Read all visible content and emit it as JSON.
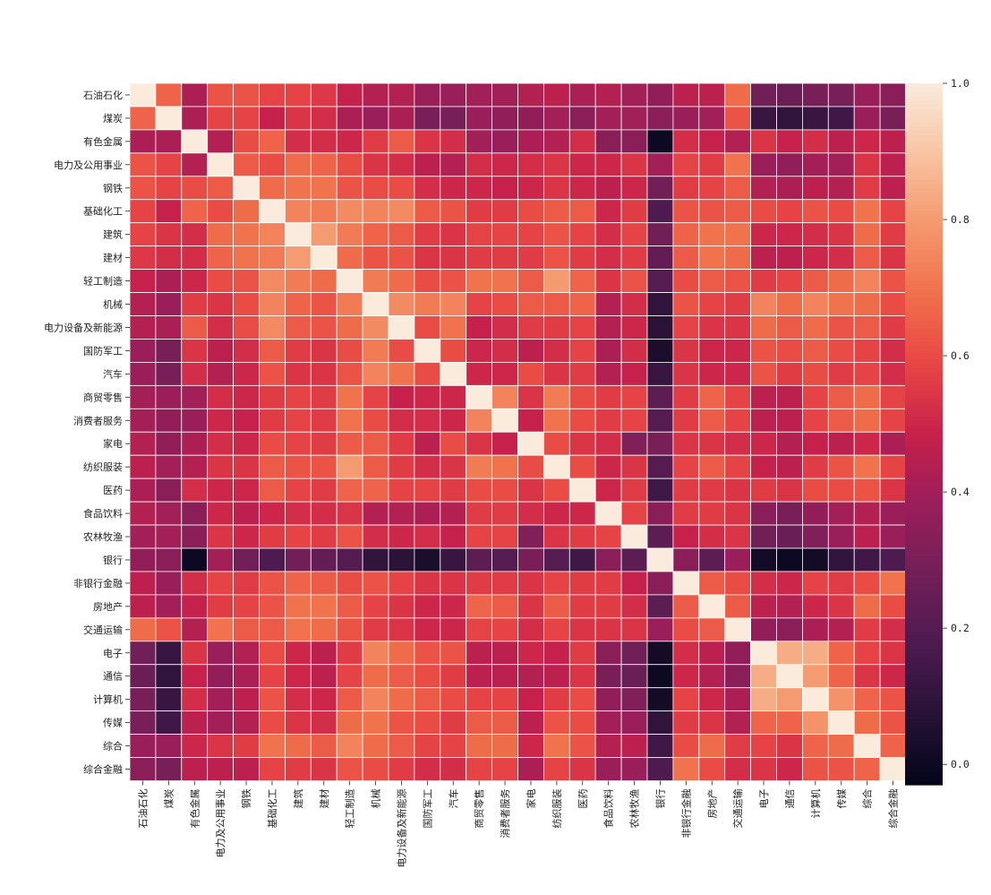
{
  "chart_data": {
    "type": "heatmap",
    "title": "",
    "xlabel": "",
    "ylabel": "",
    "labels": [
      "石油石化",
      "煤炭",
      "有色金属",
      "电力及公用事业",
      "钢铁",
      "基础化工",
      "建筑",
      "建材",
      "轻工制造",
      "机械",
      "电力设备及新能源",
      "国防军工",
      "汽车",
      "商贸零售",
      "消费者服务",
      "家电",
      "纺织服装",
      "医药",
      "食品饮料",
      "农林牧渔",
      "银行",
      "非银行金融",
      "房地产",
      "交通运输",
      "电子",
      "通信",
      "计算机",
      "传媒",
      "综合",
      "综合金融"
    ],
    "colorbar": {
      "min": -0.03,
      "max": 1.0,
      "ticks": [
        "0.0",
        "0.2",
        "0.4",
        "0.6",
        "0.8",
        "1.0"
      ],
      "tick_values": [
        0.0,
        0.2,
        0.4,
        0.6,
        0.8,
        1.0
      ]
    },
    "matrix": [
      [
        1.0,
        0.66,
        0.42,
        0.62,
        0.62,
        0.58,
        0.58,
        0.55,
        0.48,
        0.44,
        0.44,
        0.38,
        0.38,
        0.4,
        0.4,
        0.44,
        0.46,
        0.42,
        0.44,
        0.4,
        0.36,
        0.46,
        0.46,
        0.68,
        0.28,
        0.26,
        0.3,
        0.3,
        0.38,
        0.34
      ],
      [
        0.66,
        1.0,
        0.42,
        0.58,
        0.58,
        0.48,
        0.54,
        0.52,
        0.42,
        0.38,
        0.42,
        0.3,
        0.3,
        0.38,
        0.36,
        0.36,
        0.4,
        0.34,
        0.4,
        0.4,
        0.34,
        0.38,
        0.4,
        0.62,
        0.12,
        0.1,
        0.12,
        0.14,
        0.38,
        0.3
      ],
      [
        0.42,
        0.42,
        1.0,
        0.44,
        0.6,
        0.66,
        0.52,
        0.52,
        0.5,
        0.56,
        0.64,
        0.54,
        0.52,
        0.4,
        0.38,
        0.42,
        0.44,
        0.52,
        0.34,
        0.34,
        0.0,
        0.52,
        0.48,
        0.44,
        0.54,
        0.48,
        0.52,
        0.46,
        0.5,
        0.46
      ],
      [
        0.62,
        0.58,
        0.44,
        1.0,
        0.64,
        0.6,
        0.68,
        0.66,
        0.6,
        0.54,
        0.52,
        0.46,
        0.44,
        0.52,
        0.5,
        0.52,
        0.54,
        0.5,
        0.5,
        0.54,
        0.4,
        0.58,
        0.56,
        0.7,
        0.38,
        0.36,
        0.4,
        0.4,
        0.54,
        0.46
      ],
      [
        0.62,
        0.58,
        0.6,
        0.64,
        1.0,
        0.68,
        0.7,
        0.7,
        0.62,
        0.6,
        0.6,
        0.52,
        0.5,
        0.5,
        0.48,
        0.5,
        0.54,
        0.5,
        0.46,
        0.5,
        0.28,
        0.56,
        0.58,
        0.64,
        0.44,
        0.42,
        0.46,
        0.44,
        0.56,
        0.46
      ],
      [
        0.58,
        0.48,
        0.66,
        0.6,
        0.68,
        1.0,
        0.74,
        0.72,
        0.76,
        0.74,
        0.76,
        0.64,
        0.62,
        0.56,
        0.56,
        0.6,
        0.64,
        0.64,
        0.5,
        0.56,
        0.18,
        0.62,
        0.62,
        0.64,
        0.6,
        0.58,
        0.62,
        0.6,
        0.7,
        0.58
      ],
      [
        0.58,
        0.54,
        0.52,
        0.68,
        0.7,
        0.74,
        1.0,
        0.8,
        0.72,
        0.66,
        0.64,
        0.56,
        0.54,
        0.58,
        0.58,
        0.58,
        0.62,
        0.58,
        0.52,
        0.58,
        0.28,
        0.66,
        0.7,
        0.7,
        0.5,
        0.5,
        0.52,
        0.54,
        0.68,
        0.56
      ],
      [
        0.55,
        0.52,
        0.52,
        0.66,
        0.7,
        0.72,
        0.8,
        1.0,
        0.68,
        0.62,
        0.62,
        0.54,
        0.54,
        0.56,
        0.56,
        0.56,
        0.62,
        0.56,
        0.52,
        0.56,
        0.24,
        0.64,
        0.7,
        0.68,
        0.46,
        0.46,
        0.5,
        0.52,
        0.64,
        0.54
      ],
      [
        0.48,
        0.42,
        0.5,
        0.6,
        0.62,
        0.76,
        0.72,
        0.68,
        1.0,
        0.72,
        0.68,
        0.6,
        0.62,
        0.7,
        0.7,
        0.64,
        0.8,
        0.66,
        0.54,
        0.62,
        0.2,
        0.6,
        0.64,
        0.62,
        0.56,
        0.58,
        0.64,
        0.68,
        0.74,
        0.62
      ],
      [
        0.44,
        0.38,
        0.56,
        0.54,
        0.6,
        0.74,
        0.66,
        0.62,
        0.72,
        1.0,
        0.76,
        0.72,
        0.74,
        0.58,
        0.6,
        0.64,
        0.64,
        0.66,
        0.44,
        0.52,
        0.1,
        0.62,
        0.58,
        0.56,
        0.74,
        0.68,
        0.74,
        0.7,
        0.68,
        0.6
      ],
      [
        0.44,
        0.42,
        0.64,
        0.52,
        0.6,
        0.76,
        0.64,
        0.62,
        0.68,
        0.76,
        1.0,
        0.6,
        0.7,
        0.48,
        0.52,
        0.56,
        0.56,
        0.58,
        0.44,
        0.5,
        0.08,
        0.58,
        0.54,
        0.54,
        0.68,
        0.64,
        0.68,
        0.62,
        0.64,
        0.56
      ],
      [
        0.38,
        0.3,
        0.54,
        0.46,
        0.52,
        0.64,
        0.56,
        0.54,
        0.6,
        0.72,
        0.6,
        1.0,
        0.6,
        0.5,
        0.52,
        0.46,
        0.52,
        0.58,
        0.42,
        0.52,
        0.04,
        0.54,
        0.5,
        0.5,
        0.62,
        0.6,
        0.64,
        0.6,
        0.58,
        0.52
      ],
      [
        0.38,
        0.3,
        0.52,
        0.44,
        0.5,
        0.62,
        0.54,
        0.54,
        0.62,
        0.74,
        0.7,
        0.6,
        1.0,
        0.5,
        0.5,
        0.6,
        0.54,
        0.56,
        0.44,
        0.48,
        0.12,
        0.54,
        0.5,
        0.5,
        0.62,
        0.56,
        0.6,
        0.56,
        0.58,
        0.52
      ],
      [
        0.4,
        0.38,
        0.4,
        0.52,
        0.5,
        0.56,
        0.58,
        0.56,
        0.7,
        0.58,
        0.48,
        0.5,
        0.5,
        1.0,
        0.74,
        0.54,
        0.72,
        0.6,
        0.56,
        0.58,
        0.22,
        0.56,
        0.66,
        0.58,
        0.46,
        0.46,
        0.58,
        0.64,
        0.68,
        0.58
      ],
      [
        0.4,
        0.36,
        0.38,
        0.5,
        0.48,
        0.56,
        0.58,
        0.56,
        0.7,
        0.6,
        0.52,
        0.52,
        0.5,
        0.74,
        1.0,
        0.48,
        0.7,
        0.6,
        0.56,
        0.58,
        0.2,
        0.56,
        0.64,
        0.58,
        0.46,
        0.46,
        0.58,
        0.64,
        0.68,
        0.58
      ],
      [
        0.44,
        0.36,
        0.42,
        0.52,
        0.5,
        0.6,
        0.58,
        0.56,
        0.64,
        0.64,
        0.56,
        0.46,
        0.6,
        0.54,
        0.48,
        1.0,
        0.6,
        0.54,
        0.52,
        0.32,
        0.3,
        0.54,
        0.54,
        0.52,
        0.5,
        0.44,
        0.48,
        0.46,
        0.5,
        0.42
      ],
      [
        0.46,
        0.4,
        0.44,
        0.54,
        0.54,
        0.64,
        0.62,
        0.62,
        0.8,
        0.64,
        0.56,
        0.52,
        0.54,
        0.72,
        0.7,
        0.6,
        1.0,
        0.6,
        0.5,
        0.54,
        0.2,
        0.58,
        0.64,
        0.58,
        0.48,
        0.46,
        0.56,
        0.62,
        0.7,
        0.58
      ],
      [
        0.42,
        0.34,
        0.52,
        0.5,
        0.5,
        0.64,
        0.58,
        0.56,
        0.66,
        0.66,
        0.58,
        0.58,
        0.56,
        0.6,
        0.6,
        0.54,
        0.6,
        1.0,
        0.5,
        0.56,
        0.14,
        0.56,
        0.56,
        0.54,
        0.56,
        0.54,
        0.6,
        0.6,
        0.62,
        0.54
      ],
      [
        0.44,
        0.4,
        0.34,
        0.5,
        0.46,
        0.5,
        0.52,
        0.52,
        0.54,
        0.44,
        0.44,
        0.42,
        0.44,
        0.56,
        0.56,
        0.52,
        0.5,
        0.5,
        1.0,
        0.58,
        0.34,
        0.56,
        0.56,
        0.54,
        0.34,
        0.3,
        0.36,
        0.4,
        0.44,
        0.38
      ],
      [
        0.4,
        0.4,
        0.34,
        0.54,
        0.5,
        0.56,
        0.58,
        0.56,
        0.62,
        0.52,
        0.5,
        0.52,
        0.48,
        0.58,
        0.58,
        0.32,
        0.54,
        0.56,
        0.58,
        1.0,
        0.22,
        0.48,
        0.52,
        0.54,
        0.28,
        0.26,
        0.32,
        0.38,
        0.46,
        0.38
      ],
      [
        0.36,
        0.34,
        0.0,
        0.4,
        0.28,
        0.18,
        0.28,
        0.24,
        0.2,
        0.1,
        0.08,
        0.04,
        0.12,
        0.22,
        0.2,
        0.3,
        0.2,
        0.14,
        0.34,
        0.22,
        1.0,
        0.34,
        0.22,
        0.38,
        0.02,
        0.0,
        0.02,
        0.1,
        0.14,
        0.18
      ],
      [
        0.46,
        0.38,
        0.52,
        0.58,
        0.56,
        0.62,
        0.66,
        0.64,
        0.6,
        0.62,
        0.58,
        0.54,
        0.54,
        0.56,
        0.56,
        0.54,
        0.58,
        0.56,
        0.56,
        0.48,
        0.34,
        1.0,
        0.64,
        0.6,
        0.52,
        0.5,
        0.58,
        0.56,
        0.6,
        0.7
      ],
      [
        0.46,
        0.4,
        0.48,
        0.56,
        0.58,
        0.62,
        0.7,
        0.7,
        0.64,
        0.58,
        0.54,
        0.5,
        0.5,
        0.66,
        0.64,
        0.54,
        0.64,
        0.56,
        0.56,
        0.52,
        0.22,
        0.64,
        1.0,
        0.64,
        0.46,
        0.44,
        0.5,
        0.54,
        0.68,
        0.6
      ],
      [
        0.68,
        0.62,
        0.44,
        0.7,
        0.64,
        0.64,
        0.7,
        0.68,
        0.62,
        0.56,
        0.54,
        0.5,
        0.5,
        0.58,
        0.58,
        0.52,
        0.58,
        0.54,
        0.54,
        0.54,
        0.38,
        0.6,
        0.64,
        1.0,
        0.36,
        0.34,
        0.42,
        0.44,
        0.56,
        0.52
      ],
      [
        0.28,
        0.12,
        0.54,
        0.38,
        0.44,
        0.6,
        0.5,
        0.46,
        0.56,
        0.74,
        0.68,
        0.62,
        0.62,
        0.46,
        0.46,
        0.5,
        0.48,
        0.56,
        0.34,
        0.28,
        0.02,
        0.52,
        0.46,
        0.36,
        1.0,
        0.84,
        0.84,
        0.66,
        0.58,
        0.54
      ],
      [
        0.26,
        0.1,
        0.48,
        0.36,
        0.42,
        0.58,
        0.5,
        0.46,
        0.58,
        0.68,
        0.64,
        0.6,
        0.56,
        0.46,
        0.46,
        0.44,
        0.46,
        0.54,
        0.3,
        0.26,
        0.0,
        0.5,
        0.44,
        0.34,
        0.84,
        1.0,
        0.8,
        0.66,
        0.54,
        0.5
      ],
      [
        0.3,
        0.12,
        0.52,
        0.4,
        0.46,
        0.62,
        0.52,
        0.5,
        0.64,
        0.74,
        0.68,
        0.64,
        0.6,
        0.58,
        0.58,
        0.48,
        0.56,
        0.6,
        0.36,
        0.32,
        0.02,
        0.58,
        0.5,
        0.42,
        0.84,
        0.8,
        1.0,
        0.78,
        0.66,
        0.62
      ],
      [
        0.3,
        0.14,
        0.46,
        0.4,
        0.44,
        0.6,
        0.54,
        0.52,
        0.68,
        0.7,
        0.62,
        0.6,
        0.56,
        0.64,
        0.64,
        0.46,
        0.62,
        0.6,
        0.4,
        0.38,
        0.1,
        0.56,
        0.54,
        0.44,
        0.66,
        0.66,
        0.78,
        1.0,
        0.68,
        0.62
      ],
      [
        0.38,
        0.38,
        0.5,
        0.54,
        0.56,
        0.7,
        0.68,
        0.64,
        0.74,
        0.68,
        0.64,
        0.58,
        0.58,
        0.68,
        0.68,
        0.5,
        0.7,
        0.62,
        0.44,
        0.46,
        0.14,
        0.6,
        0.68,
        0.56,
        0.58,
        0.54,
        0.66,
        0.68,
        1.0,
        0.66
      ],
      [
        0.34,
        0.3,
        0.46,
        0.46,
        0.46,
        0.58,
        0.56,
        0.54,
        0.62,
        0.6,
        0.56,
        0.52,
        0.52,
        0.58,
        0.58,
        0.42,
        0.58,
        0.54,
        0.38,
        0.38,
        0.18,
        0.7,
        0.6,
        0.52,
        0.54,
        0.5,
        0.62,
        0.62,
        0.66,
        1.0
      ]
    ]
  }
}
